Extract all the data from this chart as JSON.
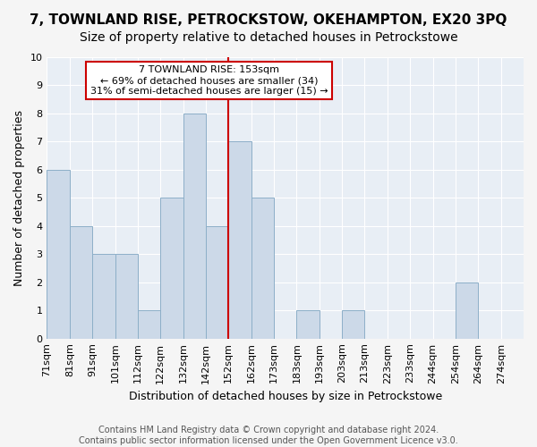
{
  "title": "7, TOWNLAND RISE, PETROCKSTOW, OKEHAMPTON, EX20 3PQ",
  "subtitle": "Size of property relative to detached houses in Petrockstowe",
  "xlabel": "Distribution of detached houses by size in Petrockstowe",
  "ylabel": "Number of detached properties",
  "bin_labels": [
    "71sqm",
    "81sqm",
    "91sqm",
    "101sqm",
    "112sqm",
    "122sqm",
    "132sqm",
    "142sqm",
    "152sqm",
    "162sqm",
    "173sqm",
    "183sqm",
    "193sqm",
    "203sqm",
    "213sqm",
    "223sqm",
    "233sqm",
    "244sqm",
    "254sqm",
    "264sqm",
    "274sqm"
  ],
  "counts": [
    6,
    4,
    3,
    3,
    1,
    5,
    8,
    4,
    7,
    5,
    0,
    1,
    0,
    1,
    0,
    0,
    0,
    0,
    2,
    0,
    0
  ],
  "bar_color": "#ccd9e8",
  "bar_edge_color": "#8dafc8",
  "vline_color": "#cc0000",
  "vline_x": 8,
  "annotation_text": "7 TOWNLAND RISE: 153sqm\n← 69% of detached houses are smaller (34)\n31% of semi-detached houses are larger (15) →",
  "annotation_box_color": "#ffffff",
  "annotation_box_edge": "#cc0000",
  "ylim": [
    0,
    10
  ],
  "yticks": [
    0,
    1,
    2,
    3,
    4,
    5,
    6,
    7,
    8,
    9,
    10
  ],
  "footer": "Contains HM Land Registry data © Crown copyright and database right 2024.\nContains public sector information licensed under the Open Government Licence v3.0.",
  "bg_color": "#e8eef5",
  "grid_color": "#ffffff",
  "fig_bg_color": "#f5f5f5",
  "title_fontsize": 11,
  "subtitle_fontsize": 10,
  "label_fontsize": 9,
  "tick_fontsize": 8,
  "footer_fontsize": 7
}
